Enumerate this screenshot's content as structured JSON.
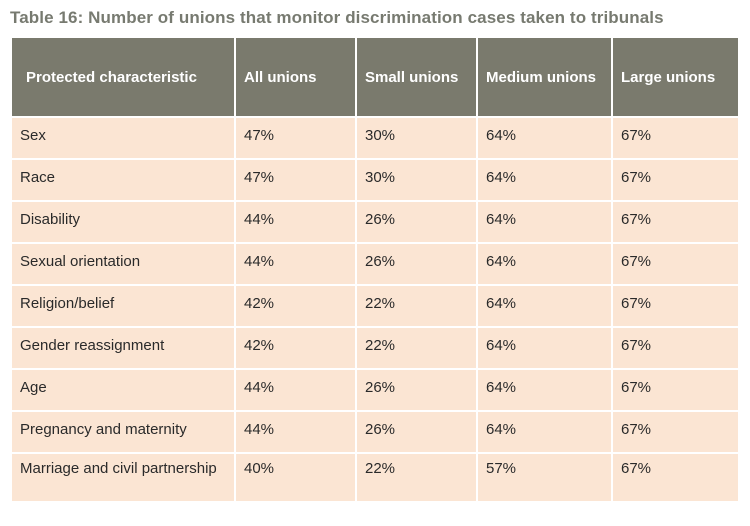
{
  "title": "Table 16: Number of unions that monitor discrimination cases taken to tribunals",
  "columns": [
    "Protected characteristic",
    "All unions",
    "Small unions",
    "Medium unions",
    "Large unions"
  ],
  "rows": [
    [
      "Sex",
      "47%",
      "30%",
      "64%",
      "67%"
    ],
    [
      "Race",
      "47%",
      "30%",
      "64%",
      "67%"
    ],
    [
      "Disability",
      "44%",
      "26%",
      "64%",
      "67%"
    ],
    [
      "Sexual orientation",
      "44%",
      "26%",
      "64%",
      "67%"
    ],
    [
      "Religion/belief",
      "42%",
      "22%",
      "64%",
      "67%"
    ],
    [
      "Gender reassignment",
      "42%",
      "22%",
      "64%",
      "67%"
    ],
    [
      "Age",
      "44%",
      "26%",
      "64%",
      "67%"
    ],
    [
      "Pregnancy and maternity",
      "44%",
      "26%",
      "64%",
      "67%"
    ],
    [
      "Marriage and civil partnership",
      "40%",
      "22%",
      "57%",
      "67%"
    ]
  ],
  "colors": {
    "header_bg": "#7a7a6d",
    "cell_bg": "#fbe5d3",
    "title": "#777a70"
  }
}
